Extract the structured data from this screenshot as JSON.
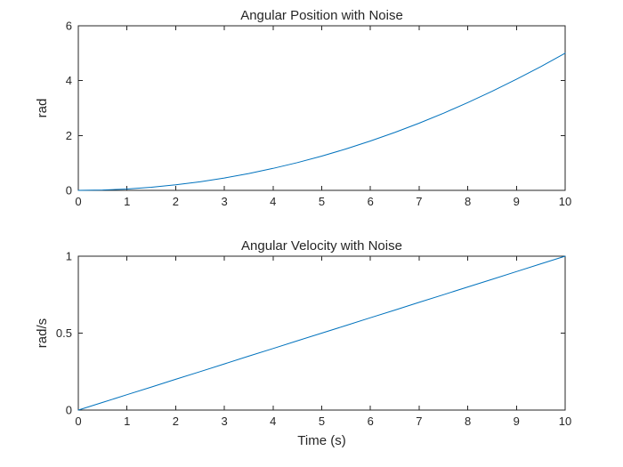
{
  "figure": {
    "background": "#FFFFFF",
    "plot_background": "#FFFFFF",
    "axis_color": "#262626",
    "text_color": "#262626",
    "line_color": "#0072BD"
  },
  "chart_data": [
    {
      "type": "line",
      "title": "Angular Position with Noise",
      "xlabel": "",
      "ylabel": "rad",
      "xlim": [
        0,
        10
      ],
      "ylim": [
        0,
        6
      ],
      "xticks": [
        0,
        1,
        2,
        3,
        4,
        5,
        6,
        7,
        8,
        9,
        10
      ],
      "yticks": [
        0,
        2,
        4,
        6
      ],
      "grid": false,
      "legend": null,
      "box": true,
      "series": [
        {
          "name": "angular-position",
          "color": "#0072BD",
          "x": [
            0,
            0.5,
            1,
            1.5,
            2,
            2.5,
            3,
            3.5,
            4,
            4.5,
            5,
            5.5,
            6,
            6.5,
            7,
            7.5,
            8,
            8.5,
            9,
            9.5,
            10
          ],
          "y": [
            0,
            0.0125,
            0.05,
            0.1125,
            0.2,
            0.3125,
            0.45,
            0.6125,
            0.8,
            1.0125,
            1.25,
            1.5125,
            1.8,
            2.1125,
            2.45,
            2.8125,
            3.2,
            3.6125,
            4.05,
            4.5125,
            5.0
          ]
        }
      ]
    },
    {
      "type": "line",
      "title": "Angular Velocity with Noise",
      "xlabel": "Time (s)",
      "ylabel": "rad/s",
      "xlim": [
        0,
        10
      ],
      "ylim": [
        0,
        1
      ],
      "xticks": [
        0,
        1,
        2,
        3,
        4,
        5,
        6,
        7,
        8,
        9,
        10
      ],
      "yticks": [
        0,
        0.5,
        1
      ],
      "grid": false,
      "legend": null,
      "box": true,
      "series": [
        {
          "name": "angular-velocity",
          "color": "#0072BD",
          "x": [
            0,
            0.5,
            1,
            1.5,
            2,
            2.5,
            3,
            3.5,
            4,
            4.5,
            5,
            5.5,
            6,
            6.5,
            7,
            7.5,
            8,
            8.5,
            9,
            9.5,
            10
          ],
          "y": [
            0,
            0.05,
            0.1,
            0.15,
            0.2,
            0.25,
            0.3,
            0.35,
            0.4,
            0.45,
            0.5,
            0.55,
            0.6,
            0.65,
            0.7,
            0.75,
            0.8,
            0.85,
            0.9,
            0.95,
            1.0
          ]
        }
      ]
    }
  ]
}
